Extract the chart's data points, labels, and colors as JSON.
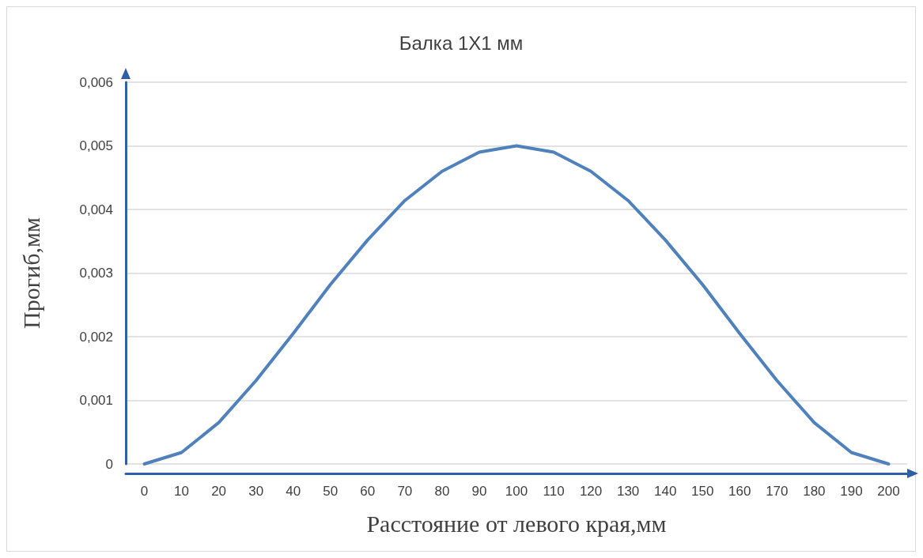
{
  "chart_data": {
    "type": "line",
    "title": "Балка 1Х1 мм",
    "xlabel": "Расстояние от левого края,мм",
    "ylabel": "Прогиб,мм",
    "categories": [
      "0",
      "10",
      "20",
      "30",
      "40",
      "50",
      "60",
      "70",
      "80",
      "90",
      "100",
      "110",
      "120",
      "130",
      "140",
      "150",
      "160",
      "170",
      "180",
      "190",
      "200"
    ],
    "series": [
      {
        "color": "#4f81bd",
        "values": [
          0,
          0.00018,
          0.00065,
          0.00131,
          0.00205,
          0.00282,
          0.00352,
          0.00414,
          0.0046,
          0.0049,
          0.005,
          0.0049,
          0.0046,
          0.00414,
          0.00352,
          0.00282,
          0.00205,
          0.00131,
          0.00065,
          0.00018,
          0
        ]
      }
    ],
    "ylim": [
      0,
      0.006
    ],
    "yticks": [
      0,
      {
        "value": 0.001,
        "label": "0,001"
      },
      {
        "value": 0.002,
        "label": "0,002"
      },
      {
        "value": 0.003,
        "label": "0,003"
      },
      {
        "value": 0.004,
        "label": "0,004"
      },
      {
        "value": 0.005,
        "label": "0,005"
      },
      {
        "value": 0.006,
        "label": "0,006"
      }
    ],
    "grid": "y",
    "marker": "none",
    "line_style": "solid"
  }
}
